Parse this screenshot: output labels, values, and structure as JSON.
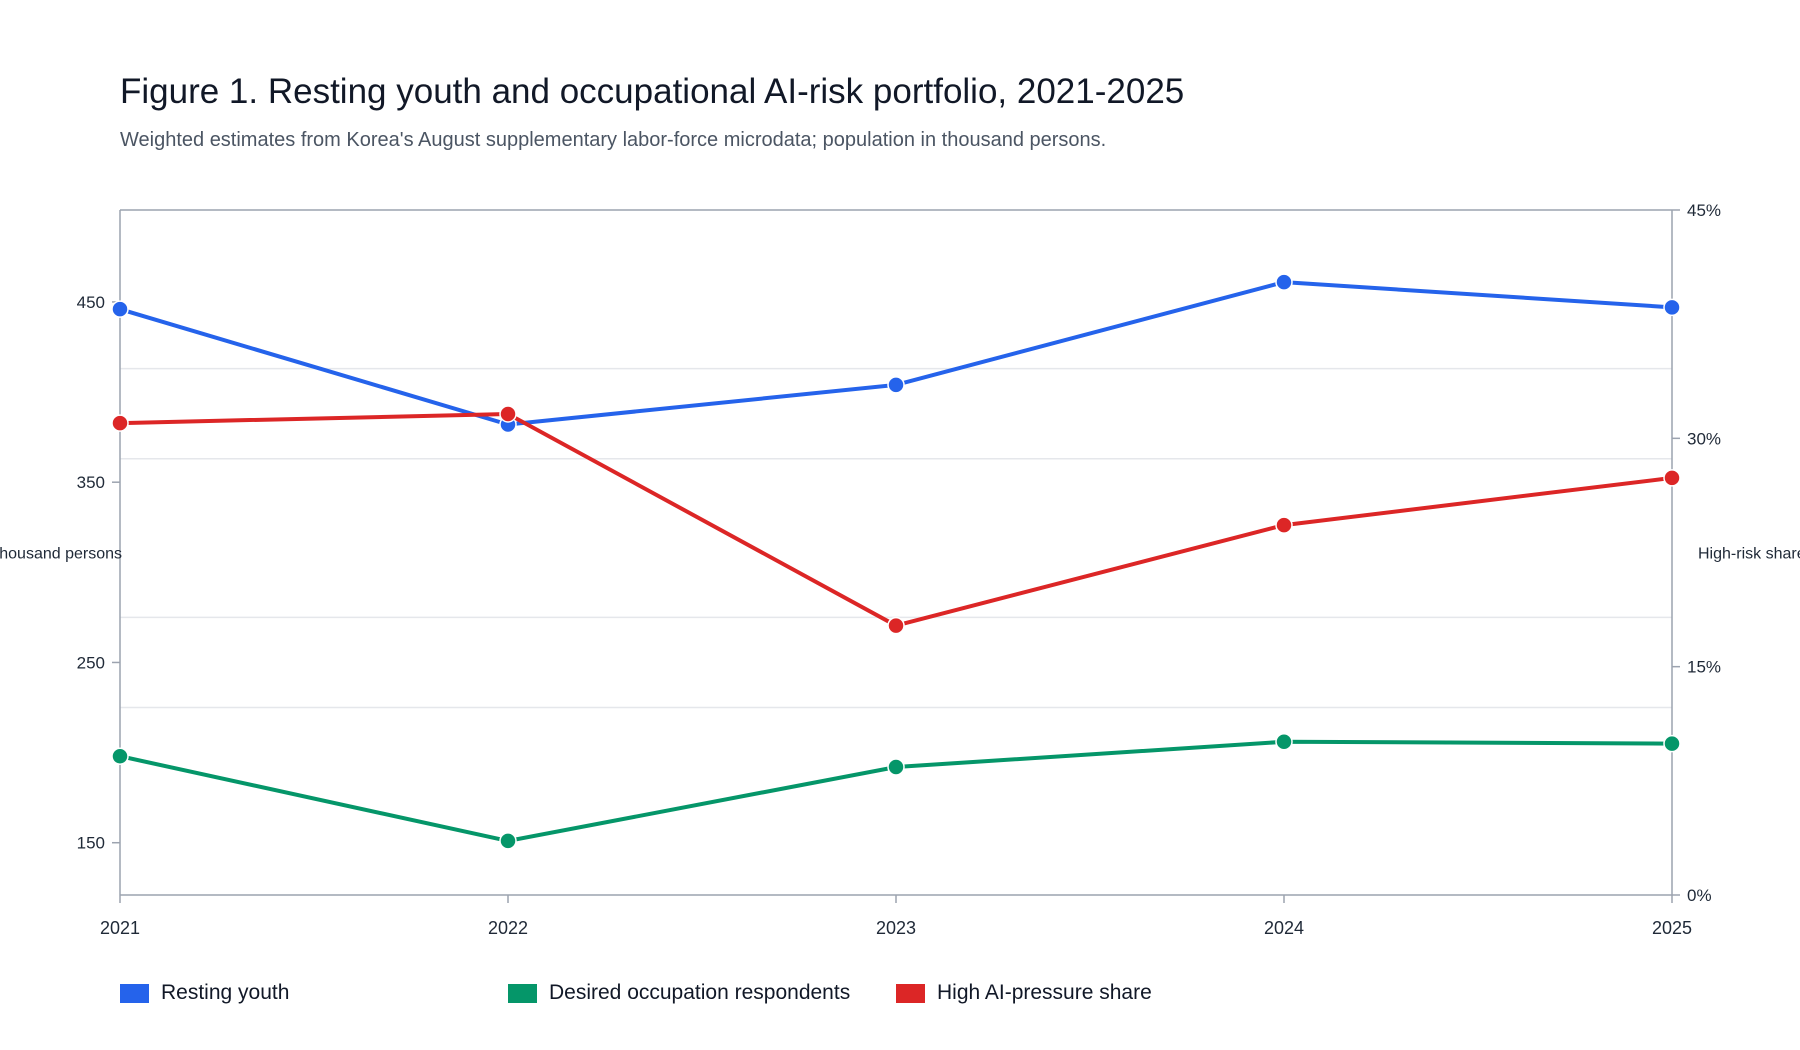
{
  "chart_data": {
    "type": "line",
    "title": "Figure 1. Resting youth and occupational AI-risk portfolio, 2021-2025",
    "subtitle": "Weighted estimates from Korea's August supplementary labor-force microdata; population in thousand persons.",
    "categories": [
      "2021",
      "2022",
      "2023",
      "2024",
      "2025"
    ],
    "y_left": {
      "label": "Thousand persons",
      "ticks": [
        150,
        250,
        350,
        450
      ],
      "tick_labels": [
        "150",
        "250",
        "350",
        "450"
      ],
      "range": [
        121,
        501
      ]
    },
    "y_right": {
      "label": "High-risk share",
      "ticks": [
        0,
        15,
        30,
        45
      ],
      "tick_labels": [
        "0%",
        "15%",
        "30%",
        "45%"
      ],
      "range": [
        0,
        45
      ]
    },
    "series": [
      {
        "name": "Resting youth",
        "axis": "left",
        "color": "#2563eb",
        "values": [
          446,
          382,
          404,
          461,
          447
        ]
      },
      {
        "name": "Desired occupation respondents",
        "axis": "left",
        "color": "#059669",
        "values": [
          198,
          151,
          192,
          206,
          205
        ]
      },
      {
        "name": "High AI-pressure share",
        "axis": "right",
        "color": "#dc2626",
        "values": [
          31.0,
          31.6,
          17.7,
          24.3,
          27.4
        ]
      }
    ],
    "legend": "bottom-left",
    "grid": true
  }
}
